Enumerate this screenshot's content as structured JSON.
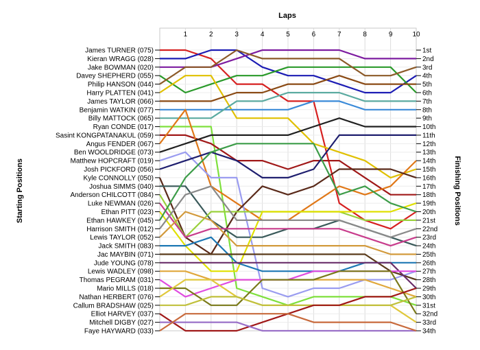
{
  "chart_data": {
    "type": "line",
    "title": "Laps",
    "ylabel_left": "Starting Positions",
    "ylabel_right": "Finishing Positions",
    "x_ticks": [
      "1",
      "2",
      "3",
      "4",
      "5",
      "6",
      "7",
      "8",
      "9",
      "10"
    ],
    "finish_labels": [
      "1st",
      "2nd",
      "3rd",
      "4th",
      "5th",
      "6th",
      "7th",
      "8th",
      "9th",
      "10th",
      "11th",
      "12th",
      "13th",
      "14th",
      "15th",
      "16th",
      "17th",
      "18th",
      "19th",
      "20th",
      "21st",
      "22nd",
      "23rd",
      "24th",
      "25th",
      "26th",
      "27th",
      "28th",
      "29th",
      "30th",
      "31st",
      "32nd",
      "33rd",
      "34th"
    ],
    "grid": true,
    "series": [
      {
        "name": "James TURNER (075)",
        "color": "#d62020",
        "positions": [
          1,
          1,
          2,
          5,
          5,
          7,
          7,
          19,
          21,
          22,
          20
        ]
      },
      {
        "name": "Kieran WRAGG (028)",
        "color": "#1c1cb4",
        "positions": [
          2,
          2,
          1,
          1,
          3,
          4,
          4,
          5,
          6,
          6,
          4
        ]
      },
      {
        "name": "Jake BOWMAN (020)",
        "color": "#7d1ca0",
        "positions": [
          3,
          3,
          3,
          2,
          1,
          1,
          1,
          1,
          2,
          2,
          2
        ]
      },
      {
        "name": "Davey SHEPHERD (055)",
        "color": "#2a9a2a",
        "positions": [
          4,
          6,
          5,
          4,
          4,
          3,
          3,
          3,
          3,
          3,
          6
        ]
      },
      {
        "name": "Philip HANSON (044)",
        "color": "#8c5a28",
        "positions": [
          5,
          3,
          3,
          1,
          2,
          2,
          2,
          2,
          4,
          4,
          3
        ]
      },
      {
        "name": "Harry PLATTEN (041)",
        "color": "#e0c000",
        "positions": [
          6,
          4,
          4,
          9,
          9,
          9,
          12,
          13,
          14,
          16,
          15
        ]
      },
      {
        "name": "James TAYLOR (066)",
        "color": "#8a4a14",
        "positions": [
          7,
          7,
          7,
          6,
          6,
          5,
          5,
          4,
          5,
          5,
          5
        ]
      },
      {
        "name": "Benjamin WATKIN (077)",
        "color": "#3a8ad8",
        "positions": [
          8,
          8,
          8,
          8,
          8,
          8,
          7,
          7,
          8,
          8,
          8
        ]
      },
      {
        "name": "Billy MATTOCK (065)",
        "color": "#5aaaa0",
        "positions": [
          9,
          9,
          9,
          7,
          7,
          6,
          6,
          6,
          7,
          7,
          7
        ]
      },
      {
        "name": "Ryan CONDE (017)",
        "color": "#7ee03c",
        "positions": [
          10,
          10,
          10,
          29,
          30,
          31,
          30,
          30,
          30,
          30,
          31
        ]
      },
      {
        "name": "Sasint KONGPATANAKUL (059)",
        "color": "#a01818",
        "positions": [
          11,
          11,
          12,
          14,
          14,
          15,
          14,
          14,
          16,
          18,
          18
        ]
      },
      {
        "name": "Angus FENDER (067)",
        "color": "#e07818",
        "positions": [
          12,
          8,
          17,
          19,
          21,
          21,
          19,
          17,
          18,
          17,
          14
        ]
      },
      {
        "name": "Ben WOOLDRIDGE (073)",
        "color": "#202020",
        "positions": [
          13,
          12,
          11,
          11,
          11,
          11,
          10,
          9,
          10,
          10,
          10
        ]
      },
      {
        "name": "Matthew HOPCRAFT (019)",
        "color": "#9a9cf0",
        "positions": [
          14,
          13,
          16,
          16,
          29,
          30,
          29,
          29,
          28,
          28,
          27
        ]
      },
      {
        "name": "Josh PICKFORD (056)",
        "color": "#1e1e6e",
        "positions": [
          15,
          14,
          13,
          14,
          16,
          16,
          15,
          11,
          11,
          11,
          11
        ]
      },
      {
        "name": "Kyle CONNOLLY (050)",
        "color": "#5a2a1a",
        "positions": [
          16,
          23,
          25,
          20,
          17,
          18,
          17,
          15,
          15,
          15,
          16
        ]
      },
      {
        "name": "Joshua SIMMS (040)",
        "color": "#3a5a5a",
        "positions": [
          17,
          17,
          21,
          23,
          23,
          22,
          22,
          21,
          22,
          23,
          24
        ]
      },
      {
        "name": "Anderson CHILCOTT (084)",
        "color": "#9ad03c",
        "positions": [
          18,
          23,
          20,
          20,
          20,
          20,
          20,
          20,
          21,
          21,
          21
        ]
      },
      {
        "name": "Luke NEWMAN (026)",
        "color": "#c83c8c",
        "positions": [
          19,
          23,
          22,
          22,
          22,
          22,
          22,
          22,
          23,
          24,
          23
        ]
      },
      {
        "name": "Ethan PITT (023)",
        "color": "#e0e000",
        "positions": [
          20,
          24,
          27,
          27,
          20,
          20,
          20,
          20,
          20,
          20,
          19
        ]
      },
      {
        "name": "Ethan HAWKEY (045)",
        "color": "#3c9c48",
        "positions": [
          21,
          16,
          13,
          12,
          12,
          12,
          12,
          18,
          17,
          19,
          20
        ]
      },
      {
        "name": "Harrison SMITH (012)",
        "color": "#8a8a8a",
        "positions": [
          22,
          18,
          17,
          21,
          21,
          21,
          21,
          21,
          22,
          23,
          22
        ]
      },
      {
        "name": "Lewis TAYLOR (052)",
        "color": "#d29a3c",
        "positions": [
          23,
          20,
          21,
          24,
          24,
          24,
          24,
          24,
          24,
          25,
          25
        ]
      },
      {
        "name": "Jack SMITH (083)",
        "color": "#1e78b4",
        "positions": [
          24,
          24,
          23,
          26,
          27,
          27,
          27,
          27,
          26,
          26,
          26
        ]
      },
      {
        "name": "Jac MAYBIN (071)",
        "color": "#5a3a1a",
        "positions": [
          25,
          25,
          25,
          25,
          25,
          25,
          25,
          25,
          25,
          27,
          28
        ]
      },
      {
        "name": "Jude YOUNG (078)",
        "color": "#6a2e6a",
        "positions": [
          26,
          26,
          26,
          26,
          26,
          26,
          26,
          26,
          26,
          26,
          29
        ]
      },
      {
        "name": "Lewis WADLEY (098)",
        "color": "#e0a83c",
        "positions": [
          27,
          27,
          28,
          28,
          28,
          28,
          28,
          28,
          28,
          29,
          30
        ]
      },
      {
        "name": "Thomas PEGRAM (031)",
        "color": "#e04ce0",
        "positions": [
          28,
          30,
          29,
          28,
          28,
          28,
          27,
          27,
          27,
          27,
          27
        ]
      },
      {
        "name": "Mario MILLS (018)",
        "color": "#7a7a1a",
        "positions": [
          29,
          29,
          31,
          31,
          28,
          28,
          28,
          27,
          27,
          27,
          32
        ]
      },
      {
        "name": "Nathan HERBERT (076)",
        "color": "#e0c83c",
        "positions": [
          30,
          28,
          28,
          30,
          31,
          31,
          31,
          31,
          31,
          31,
          33
        ]
      },
      {
        "name": "Callum BRADSHAW (025)",
        "color": "#c0c03c",
        "positions": [
          31,
          31,
          30,
          30,
          31,
          31,
          31,
          31,
          31,
          31,
          30
        ]
      },
      {
        "name": "Elliot HARVEY (037)",
        "color": "#a01818",
        "positions": [
          32,
          34,
          34,
          34,
          33,
          32,
          31,
          31,
          30,
          30,
          29
        ]
      },
      {
        "name": "Mitchell DIGBY (027)",
        "color": "#9a70c8",
        "positions": [
          33,
          33,
          33,
          33,
          34,
          34,
          34,
          34,
          34,
          34,
          34
        ]
      },
      {
        "name": "Faye HAYWARD (033)",
        "color": "#c86a3c",
        "positions": [
          34,
          32,
          32,
          32,
          32,
          32,
          33,
          33,
          33,
          33,
          34
        ]
      }
    ]
  }
}
